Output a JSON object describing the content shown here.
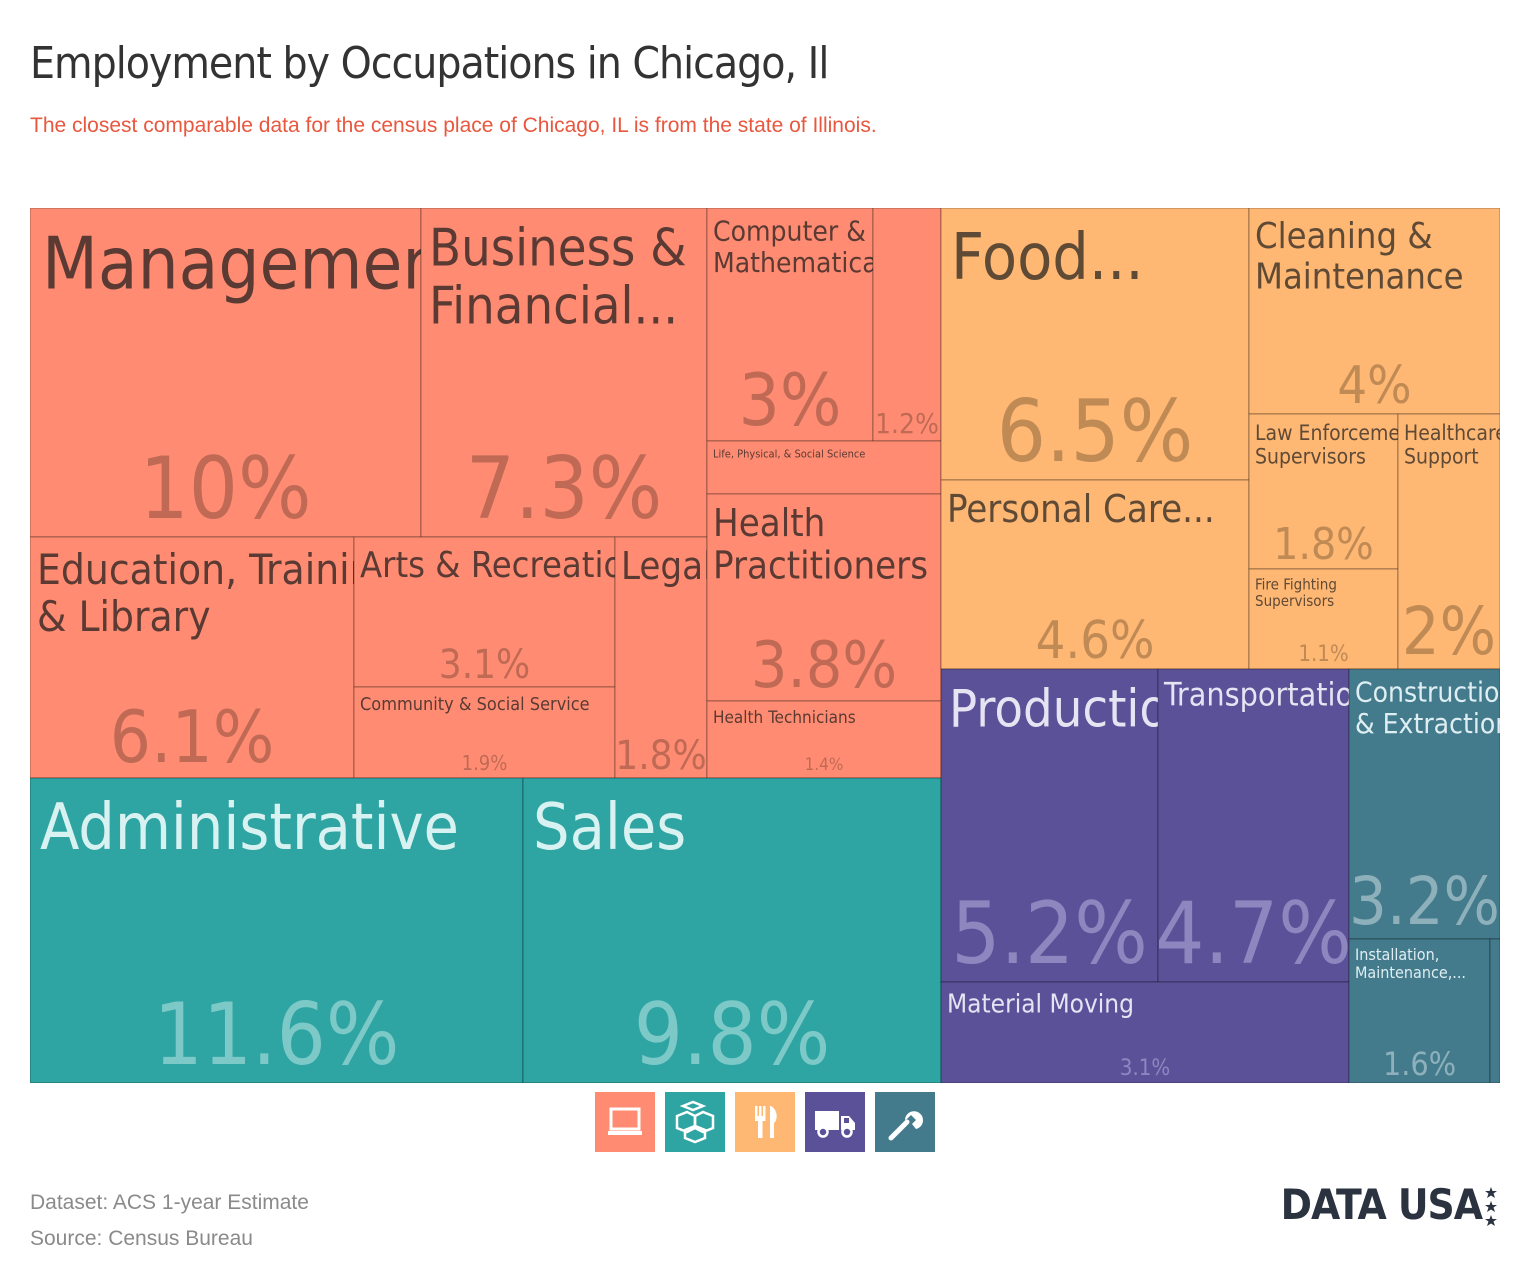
{
  "header": {
    "title": "Employment by Occupations in Chicago, Il",
    "subtitle": "The closest comparable data for the census place of Chicago, IL is from the state of Illinois."
  },
  "chart_data": {
    "type": "treemap",
    "title": "Employment by Occupations in Chicago, Il",
    "groups": [
      {
        "id": "professional",
        "color": "#ff8c72",
        "label_color": "#5a3a33",
        "value_color": "#c06a55"
      },
      {
        "id": "sales_office",
        "color": "#2ea4a3",
        "label_color": "#d8f2f1",
        "value_color": "#7dc9c7"
      },
      {
        "id": "service",
        "color": "#ffb774",
        "label_color": "#5f4a35",
        "value_color": "#c08a55"
      },
      {
        "id": "transport",
        "color": "#5b5198",
        "label_color": "#e6e3f3",
        "value_color": "#8e87bf"
      },
      {
        "id": "construction",
        "color": "#437b8c",
        "label_color": "#dfeef2",
        "value_color": "#8db0bb"
      }
    ],
    "items": [
      {
        "group": "professional",
        "label": "Management",
        "value": "10%"
      },
      {
        "group": "professional",
        "label": "Business & Financial...",
        "value": "7.3%"
      },
      {
        "group": "professional",
        "label": "Computer & Mathematical",
        "value": "3%"
      },
      {
        "group": "professional",
        "label": "",
        "value": "1.2%"
      },
      {
        "group": "professional",
        "label": "Life, Physical, & Social Science",
        "value": ""
      },
      {
        "group": "professional",
        "label": "Education, Training, & Library",
        "value": "6.1%"
      },
      {
        "group": "professional",
        "label": "Arts & Recreation",
        "value": "3.1%"
      },
      {
        "group": "professional",
        "label": "Community & Social Service",
        "value": "1.9%"
      },
      {
        "group": "professional",
        "label": "Legal",
        "value": "1.8%"
      },
      {
        "group": "professional",
        "label": "Health Practitioners",
        "value": "3.8%"
      },
      {
        "group": "professional",
        "label": "Health Technicians",
        "value": "1.4%"
      },
      {
        "group": "sales_office",
        "label": "Administrative",
        "value": "11.6%"
      },
      {
        "group": "sales_office",
        "label": "Sales",
        "value": "9.8%"
      },
      {
        "group": "service",
        "label": "Food...",
        "value": "6.5%"
      },
      {
        "group": "service",
        "label": "Personal Care...",
        "value": "4.6%"
      },
      {
        "group": "service",
        "label": "Cleaning & Maintenance",
        "value": "4%"
      },
      {
        "group": "service",
        "label": "Law Enforcement Supervisors",
        "value": "1.8%"
      },
      {
        "group": "service",
        "label": "Fire Fighting Supervisors",
        "value": "1.1%"
      },
      {
        "group": "service",
        "label": "Healthcare Support",
        "value": "2%"
      },
      {
        "group": "transport",
        "label": "Production",
        "value": "5.2%"
      },
      {
        "group": "transport",
        "label": "Transportation",
        "value": "4.7%"
      },
      {
        "group": "transport",
        "label": "Material Moving",
        "value": "3.1%"
      },
      {
        "group": "construction",
        "label": "Construction & Extraction",
        "value": "3.2%"
      },
      {
        "group": "construction",
        "label": "Installation, Maintenance,...",
        "value": "1.6%"
      },
      {
        "group": "construction",
        "label": "",
        "value": ""
      }
    ]
  },
  "legend": [
    {
      "icon": "computer-icon",
      "color": "#ff8c72"
    },
    {
      "icon": "boxes-icon",
      "color": "#2ea4a3"
    },
    {
      "icon": "fork-knife-icon",
      "color": "#ffb774"
    },
    {
      "icon": "truck-icon",
      "color": "#5b5198"
    },
    {
      "icon": "wrench-icon",
      "color": "#437b8c"
    }
  ],
  "footer": {
    "dataset": "Dataset: ACS 1-year Estimate",
    "source": "Source: Census Bureau"
  },
  "logo": {
    "text": "DATA USA"
  }
}
